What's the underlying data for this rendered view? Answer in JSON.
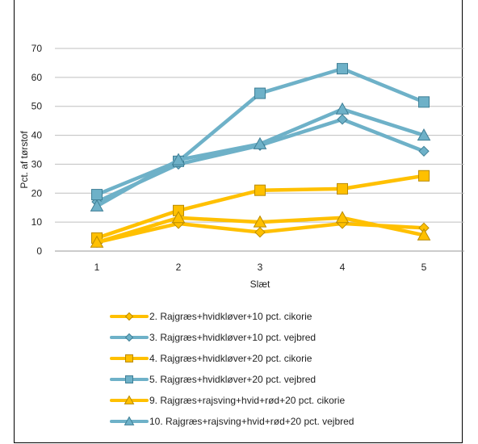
{
  "chart_data": {
    "type": "line",
    "xlabel": "Slæt",
    "ylabel": "Pct. af tørstof",
    "x": [
      1,
      2,
      3,
      4,
      5
    ],
    "ylim": [
      0,
      70
    ],
    "yticks": [
      0,
      10,
      20,
      30,
      40,
      50,
      60,
      70
    ],
    "grid": true,
    "legend_position": "bottom",
    "series": [
      {
        "name": "2. Rajgræs+hvidkløver+10 pct. cikorie",
        "values": [
          3,
          9.5,
          6.5,
          9.5,
          8
        ],
        "color": "#FFC000",
        "marker": "diamond"
      },
      {
        "name": "3. Rajgræs+hvidkløver+10 pct. vejbred",
        "values": [
          17,
          30,
          36.5,
          45.5,
          34.5
        ],
        "color": "#6EB1C8",
        "marker": "diamond"
      },
      {
        "name": "4. Rajgræs+hvidkløver+20 pct. cikorie",
        "values": [
          4.5,
          14,
          21,
          21.5,
          26
        ],
        "color": "#FFC000",
        "marker": "square"
      },
      {
        "name": "5. Rajgræs+hvidkløver+20 pct. vejbred",
        "values": [
          19.5,
          31,
          54.5,
          63,
          51.5
        ],
        "color": "#6EB1C8",
        "marker": "square"
      },
      {
        "name": "9. Rajgræs+rajsving+hvid+rød+20 pct. cikorie",
        "values": [
          3,
          11.5,
          10,
          11.5,
          5.5
        ],
        "color": "#FFC000",
        "marker": "triangle"
      },
      {
        "name": "10. Rajgræs+rajsving+hvid+rød+20 pct. vejbred",
        "values": [
          15.5,
          31.5,
          37,
          49,
          40
        ],
        "color": "#6EB1C8",
        "marker": "triangle"
      }
    ]
  }
}
